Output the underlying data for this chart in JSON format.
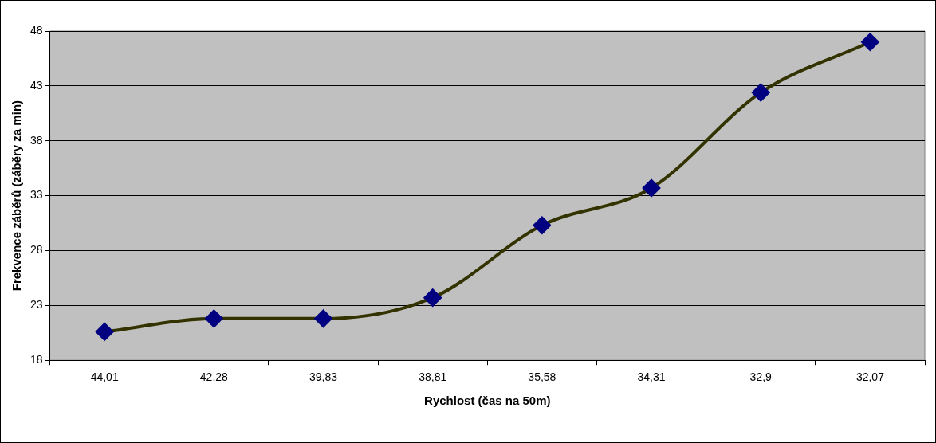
{
  "chart_data": {
    "type": "line",
    "xlabel": "Rychlost (čas na 50m)",
    "ylabel": "Frekvence záběrů (záběry za min)",
    "categories": [
      "44,01",
      "42,28",
      "39,83",
      "38,81",
      "35,58",
      "34,31",
      "32,9",
      "32,07"
    ],
    "series": [
      {
        "color": "#333300",
        "values": [
          20.6,
          21.8,
          21.8,
          23.7,
          30.3,
          33.7,
          42.4,
          47.0
        ]
      }
    ],
    "ylim": [
      18,
      48
    ],
    "yticks": [
      18,
      23,
      28,
      33,
      38,
      43,
      48
    ],
    "grid": "y",
    "legend": false,
    "marker": "diamond",
    "line_style": "solid"
  }
}
